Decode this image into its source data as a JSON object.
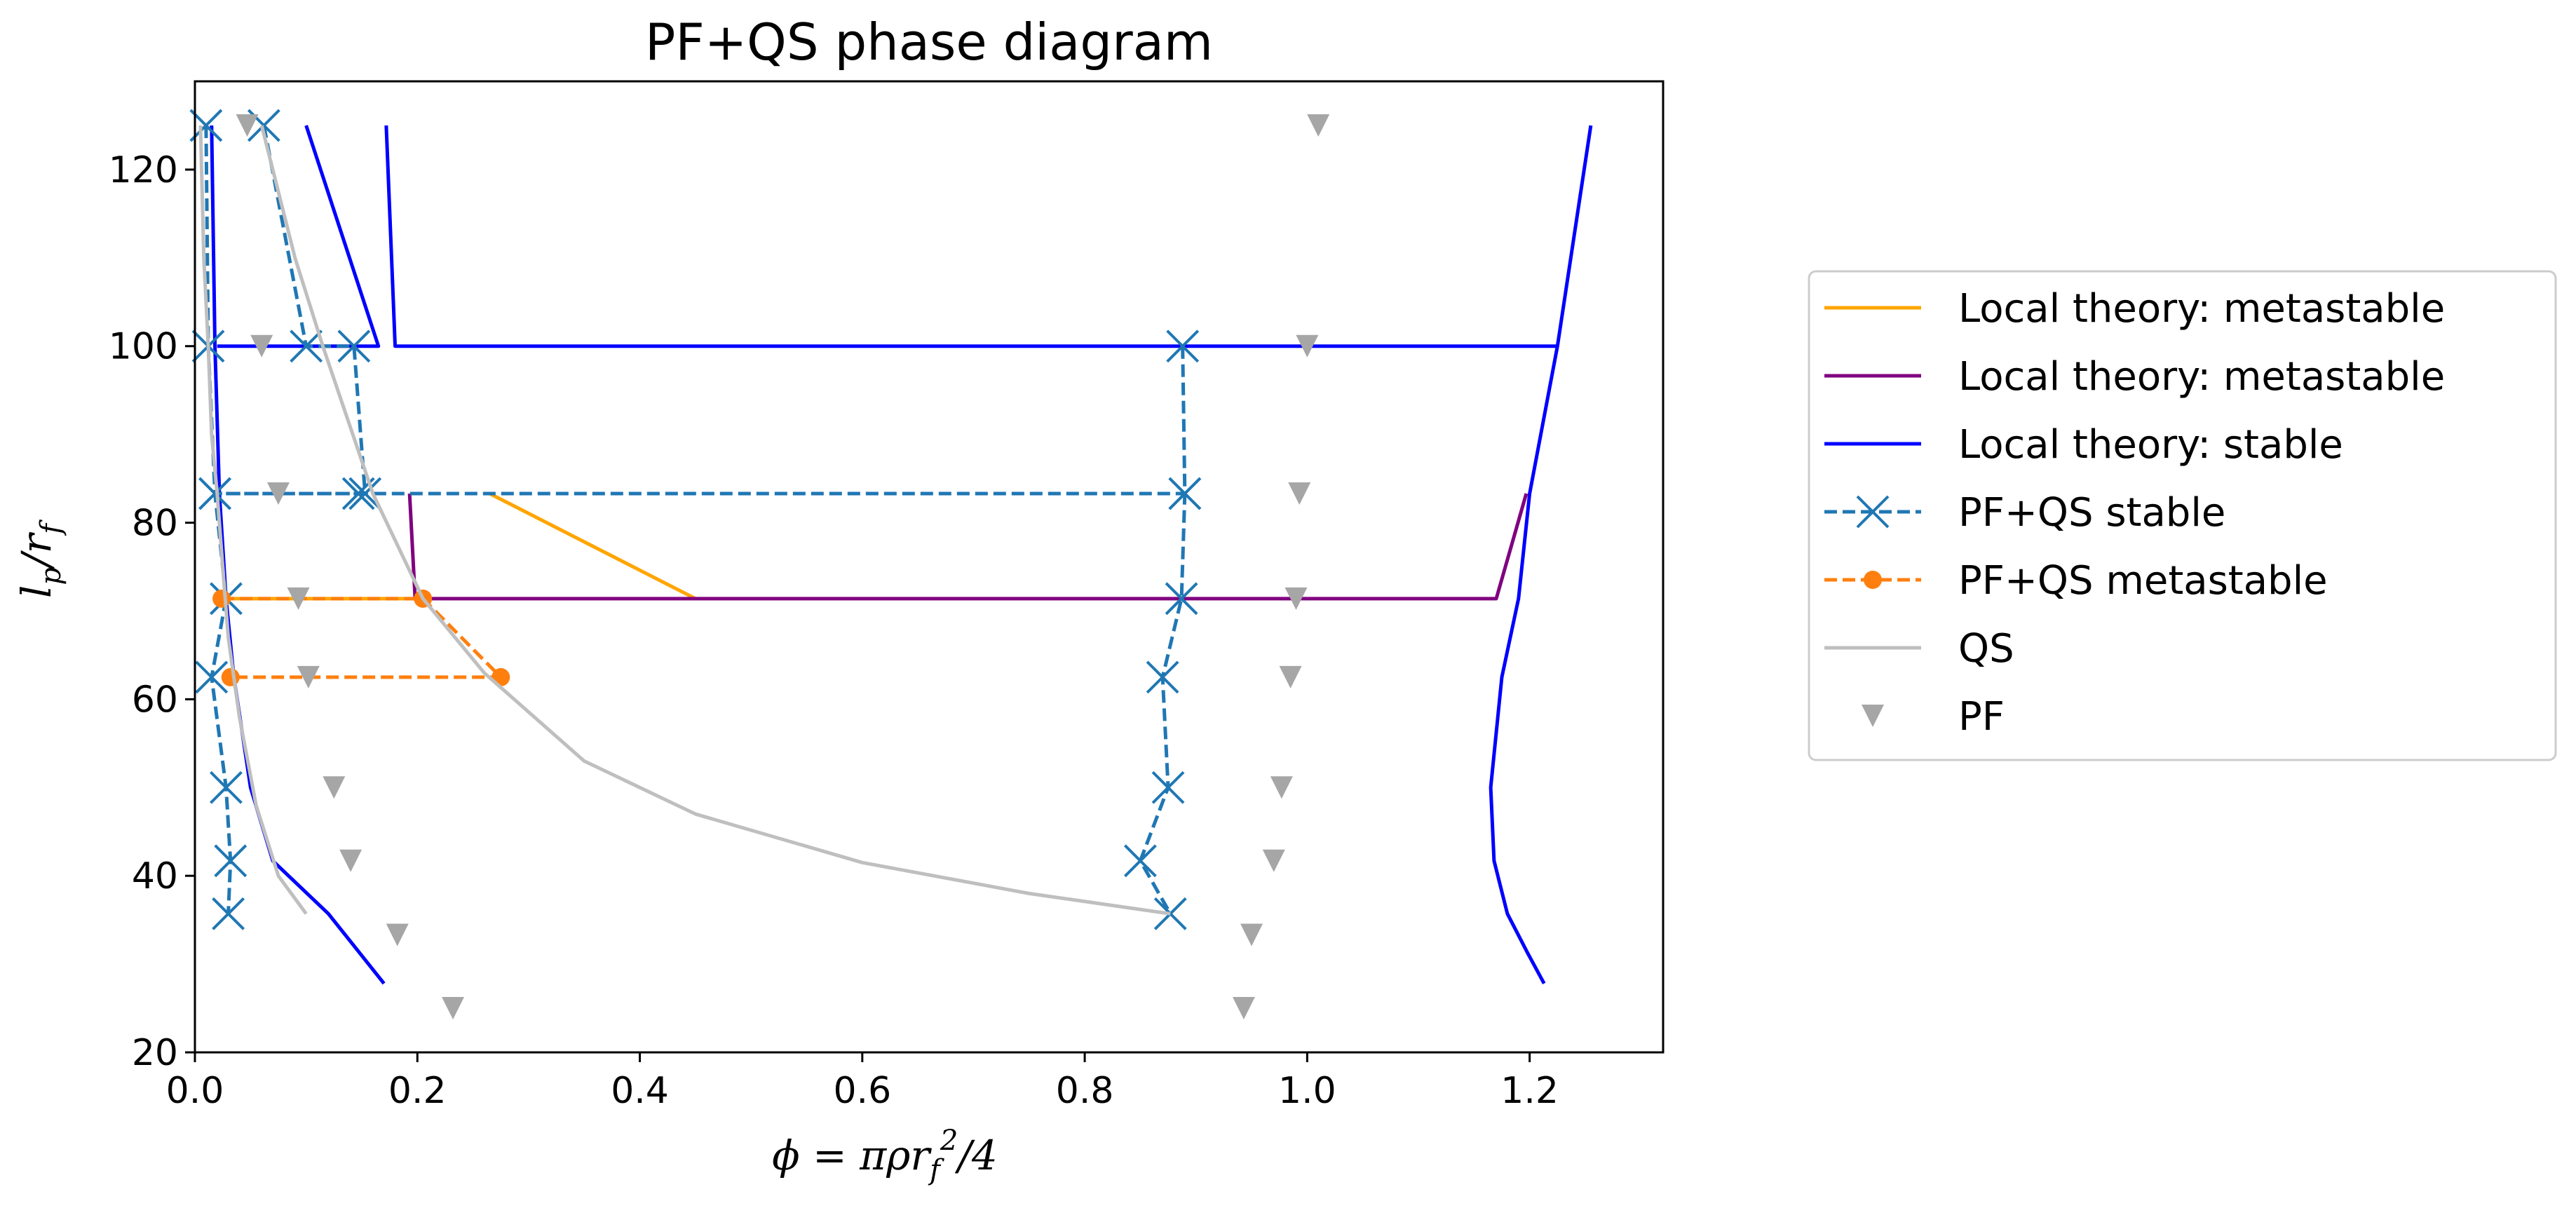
{
  "chart_data": {
    "type": "line",
    "title": "PF+QS phase diagram",
    "xlabel": "ϕ = πρr_f²/4",
    "ylabel": "l_p/r_f",
    "xlim": [
      0.0,
      1.32
    ],
    "ylim": [
      20,
      130
    ],
    "xticks": [
      0.0,
      0.2,
      0.4,
      0.6,
      0.8,
      1.0,
      1.2
    ],
    "xtick_labels": [
      "0.0",
      "0.2",
      "0.4",
      "0.6",
      "0.8",
      "1.0",
      "1.2"
    ],
    "yticks": [
      20,
      40,
      60,
      80,
      100,
      120
    ],
    "ytick_labels": [
      "20",
      "40",
      "60",
      "80",
      "100",
      "120"
    ],
    "grid": false,
    "legend_position": "right, outside plot",
    "series": [
      {
        "name": "Local theory: metastable",
        "color": "#ffa500",
        "style": "solid",
        "marker": "none",
        "segments": [
          [
            [
              0.265,
              83.3
            ],
            [
              0.45,
              71.4
            ]
          ],
          [
            [
              0.02,
              71.4
            ],
            [
              0.205,
              71.4
            ]
          ]
        ]
      },
      {
        "name": "Local theory: metastable",
        "color": "#800080",
        "style": "solid",
        "marker": "none",
        "segments": [
          [
            [
              0.193,
              83.3
            ],
            [
              0.198,
              71.4
            ],
            [
              1.17,
              71.4
            ],
            [
              1.197,
              83.3
            ]
          ]
        ]
      },
      {
        "name": "Local theory: stable",
        "color": "#0000ff",
        "style": "solid",
        "marker": "none",
        "segments": [
          [
            [
              0.015,
              125
            ],
            [
              0.018,
              100
            ],
            [
              0.022,
              83.3
            ],
            [
              0.028,
              71.4
            ],
            [
              0.035,
              62.5
            ],
            [
              0.05,
              50
            ],
            [
              0.07,
              41.7
            ],
            [
              0.12,
              35.7
            ],
            [
              0.17,
              27.8
            ]
          ],
          [
            [
              0.1,
              125
            ],
            [
              0.165,
              100
            ],
            [
              0.03,
              100
            ],
            [
              0.02,
              100
            ]
          ],
          [
            [
              0.172,
              125
            ],
            [
              0.18,
              100
            ],
            [
              1.225,
              100
            ]
          ],
          [
            [
              1.255,
              125
            ],
            [
              1.225,
              100
            ],
            [
              1.2,
              83.3
            ],
            [
              1.19,
              71.4
            ],
            [
              1.175,
              62.5
            ],
            [
              1.165,
              50
            ],
            [
              1.168,
              41.7
            ],
            [
              1.18,
              35.7
            ],
            [
              1.198,
              31.3
            ],
            [
              1.213,
              27.8
            ]
          ]
        ]
      },
      {
        "name": "PF+QS stable",
        "color": "#1f77b4",
        "style": "dashed",
        "marker": "x",
        "segments": [
          [
            [
              0.01,
              125
            ],
            [
              0.012,
              100
            ],
            [
              0.018,
              83.3
            ],
            [
              0.028,
              71.4
            ],
            [
              0.015,
              62.5
            ],
            [
              0.028,
              50
            ],
            [
              0.032,
              41.7
            ],
            [
              0.03,
              35.7
            ]
          ],
          [
            [
              0.062,
              125
            ],
            [
              0.1,
              100
            ],
            [
              0.143,
              100
            ],
            [
              0.153,
              83.3
            ],
            [
              0.147,
              83.3
            ],
            [
              0.018,
              83.3
            ],
            [
              0.89,
              83.3
            ]
          ],
          [
            [
              0.888,
              100
            ],
            [
              0.89,
              83.3
            ],
            [
              0.887,
              71.4
            ],
            [
              0.87,
              62.5
            ],
            [
              0.875,
              50
            ],
            [
              0.85,
              41.7
            ],
            [
              0.877,
              35.7
            ]
          ]
        ]
      },
      {
        "name": "PF+QS metastable",
        "color": "#ff7f0e",
        "style": "dashed",
        "marker": "o",
        "segments": [
          [
            [
              0.024,
              71.4
            ],
            [
              0.205,
              71.4
            ],
            [
              0.275,
              62.5
            ],
            [
              0.032,
              62.5
            ]
          ]
        ]
      },
      {
        "name": "QS",
        "color": "#bfbfbf",
        "style": "solid",
        "marker": "none",
        "segments": [
          [
            [
              0.005,
              125
            ],
            [
              0.008,
              110
            ],
            [
              0.012,
              100
            ],
            [
              0.015,
              90
            ],
            [
              0.02,
              83.3
            ],
            [
              0.025,
              75
            ],
            [
              0.03,
              67
            ],
            [
              0.04,
              58
            ],
            [
              0.055,
              48
            ],
            [
              0.075,
              40
            ],
            [
              0.1,
              35.7
            ]
          ],
          [
            [
              0.06,
              125
            ],
            [
              0.09,
              110
            ],
            [
              0.115,
              100
            ],
            [
              0.16,
              83.3
            ],
            [
              0.205,
              71.4
            ],
            [
              0.26,
              63
            ],
            [
              0.35,
              53
            ],
            [
              0.45,
              47
            ],
            [
              0.6,
              41.5
            ],
            [
              0.75,
              38
            ],
            [
              0.877,
              35.7
            ]
          ]
        ]
      },
      {
        "name": "PF",
        "color": "#a6a6a6",
        "style": "none",
        "marker": "v",
        "points": [
          [
            0.047,
            125
          ],
          [
            0.06,
            100
          ],
          [
            0.075,
            83.3
          ],
          [
            0.093,
            71.4
          ],
          [
            0.102,
            62.5
          ],
          [
            0.125,
            50
          ],
          [
            0.14,
            41.7
          ],
          [
            0.182,
            33.3
          ],
          [
            0.232,
            25
          ],
          [
            1.01,
            125
          ],
          [
            1.0,
            100
          ],
          [
            0.993,
            83.3
          ],
          [
            0.99,
            71.4
          ],
          [
            0.985,
            62.5
          ],
          [
            0.977,
            50
          ],
          [
            0.97,
            41.7
          ],
          [
            0.95,
            33.3
          ],
          [
            0.943,
            25
          ]
        ]
      }
    ]
  }
}
